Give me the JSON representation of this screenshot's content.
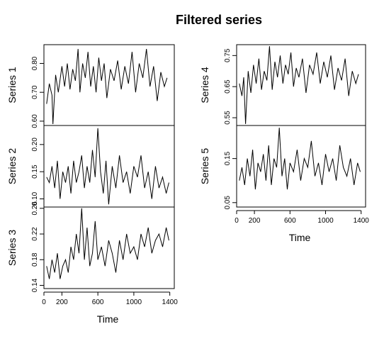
{
  "chart_data": {
    "type": "line",
    "title": "Filtered series",
    "xlabel": "Time",
    "x_domain": [
      0,
      1450
    ],
    "x_ticks": [
      0,
      200,
      600,
      1000,
      1400
    ],
    "x_tick_labels": [
      "0",
      "200",
      "600",
      "1000",
      "1400"
    ],
    "columns": [
      {
        "xlabel": "Time",
        "panels": [
          {
            "name": "Series 1",
            "ylim": [
              0.585,
              0.865
            ],
            "yticks": [
              0.6,
              0.7,
              0.8
            ],
            "ytick_labels": [
              "0.60",
              "0.70",
              "0.80"
            ],
            "x": [
              30,
              60,
              90,
              100,
              130,
              160,
              200,
              230,
              260,
              290,
              320,
              350,
              380,
              400,
              430,
              460,
              490,
              520,
              550,
              580,
              610,
              640,
              670,
              700,
              740,
              780,
              820,
              860,
              900,
              940,
              980,
              1020,
              1060,
              1100,
              1140,
              1180,
              1220,
              1260,
              1300,
              1340,
              1370
            ],
            "values": [
              0.66,
              0.73,
              0.69,
              0.59,
              0.76,
              0.7,
              0.79,
              0.72,
              0.8,
              0.71,
              0.78,
              0.74,
              0.85,
              0.7,
              0.8,
              0.75,
              0.84,
              0.72,
              0.79,
              0.7,
              0.82,
              0.74,
              0.8,
              0.68,
              0.78,
              0.74,
              0.81,
              0.71,
              0.79,
              0.73,
              0.84,
              0.7,
              0.8,
              0.75,
              0.85,
              0.72,
              0.79,
              0.67,
              0.77,
              0.72,
              0.75
            ]
          },
          {
            "name": "Series 2",
            "ylim": [
              0.085,
              0.235
            ],
            "yticks": [
              0.1,
              0.15,
              0.2
            ],
            "ytick_labels": [
              "0.10",
              "0.15",
              "0.20"
            ],
            "x": [
              30,
              60,
              90,
              120,
              150,
              180,
              210,
              240,
              270,
              300,
              330,
              360,
              390,
              420,
              450,
              480,
              510,
              540,
              570,
              600,
              630,
              660,
              690,
              720,
              760,
              800,
              840,
              880,
              920,
              960,
              1000,
              1040,
              1080,
              1120,
              1160,
              1200,
              1240,
              1280,
              1320,
              1360,
              1390
            ],
            "values": [
              0.14,
              0.13,
              0.16,
              0.12,
              0.17,
              0.1,
              0.15,
              0.13,
              0.16,
              0.11,
              0.17,
              0.13,
              0.15,
              0.18,
              0.12,
              0.16,
              0.13,
              0.19,
              0.14,
              0.23,
              0.15,
              0.11,
              0.17,
              0.09,
              0.16,
              0.12,
              0.18,
              0.13,
              0.15,
              0.11,
              0.16,
              0.14,
              0.18,
              0.12,
              0.15,
              0.1,
              0.16,
              0.12,
              0.14,
              0.11,
              0.13
            ]
          },
          {
            "name": "Series 3",
            "ylim": [
              0.135,
              0.262
            ],
            "yticks": [
              0.14,
              0.18,
              0.22,
              0.26
            ],
            "ytick_labels": [
              "0.14",
              "0.18",
              "0.22",
              "0.26"
            ],
            "x": [
              30,
              60,
              90,
              120,
              150,
              180,
              210,
              240,
              270,
              300,
              330,
              360,
              390,
              420,
              450,
              480,
              510,
              540,
              570,
              600,
              640,
              680,
              720,
              760,
              800,
              840,
              880,
              920,
              960,
              1000,
              1040,
              1080,
              1120,
              1160,
              1200,
              1240,
              1280,
              1320,
              1360,
              1390
            ],
            "values": [
              0.17,
              0.15,
              0.18,
              0.16,
              0.19,
              0.15,
              0.17,
              0.18,
              0.16,
              0.2,
              0.18,
              0.22,
              0.19,
              0.26,
              0.18,
              0.23,
              0.17,
              0.19,
              0.24,
              0.18,
              0.2,
              0.17,
              0.21,
              0.19,
              0.16,
              0.21,
              0.18,
              0.22,
              0.19,
              0.2,
              0.18,
              0.22,
              0.2,
              0.23,
              0.19,
              0.21,
              0.22,
              0.2,
              0.23,
              0.21
            ]
          }
        ]
      },
      {
        "xlabel": "Time",
        "panels": [
          {
            "name": "Series 4",
            "ylim": [
              0.525,
              0.785
            ],
            "yticks": [
              0.55,
              0.65,
              0.75
            ],
            "ytick_labels": [
              "0.55",
              "0.65",
              "0.75"
            ],
            "x": [
              30,
              60,
              80,
              100,
              130,
              160,
              190,
              220,
              250,
              280,
              310,
              340,
              370,
              400,
              430,
              460,
              490,
              520,
              550,
              580,
              610,
              640,
              670,
              700,
              740,
              780,
              820,
              860,
              900,
              940,
              980,
              1020,
              1060,
              1100,
              1140,
              1180,
              1220,
              1260,
              1300,
              1340,
              1370
            ],
            "values": [
              0.66,
              0.62,
              0.68,
              0.53,
              0.7,
              0.63,
              0.72,
              0.66,
              0.74,
              0.64,
              0.7,
              0.67,
              0.78,
              0.64,
              0.73,
              0.68,
              0.75,
              0.66,
              0.72,
              0.69,
              0.76,
              0.65,
              0.71,
              0.68,
              0.74,
              0.63,
              0.72,
              0.69,
              0.76,
              0.66,
              0.73,
              0.68,
              0.75,
              0.64,
              0.71,
              0.67,
              0.74,
              0.62,
              0.7,
              0.66,
              0.69
            ]
          },
          {
            "name": "Series 5",
            "ylim": [
              0.04,
              0.225
            ],
            "yticks": [
              0.05,
              0.15
            ],
            "ytick_labels": [
              "0.05",
              "0.15"
            ],
            "x": [
              30,
              60,
              90,
              120,
              150,
              180,
              210,
              240,
              270,
              300,
              330,
              360,
              390,
              420,
              450,
              480,
              510,
              540,
              570,
              600,
              640,
              680,
              720,
              760,
              800,
              840,
              880,
              920,
              960,
              1000,
              1040,
              1080,
              1120,
              1160,
              1200,
              1240,
              1280,
              1320,
              1360,
              1390
            ],
            "values": [
              0.1,
              0.13,
              0.09,
              0.15,
              0.11,
              0.17,
              0.08,
              0.14,
              0.12,
              0.16,
              0.1,
              0.18,
              0.09,
              0.15,
              0.13,
              0.22,
              0.11,
              0.15,
              0.08,
              0.14,
              0.12,
              0.17,
              0.1,
              0.15,
              0.13,
              0.19,
              0.11,
              0.14,
              0.09,
              0.16,
              0.12,
              0.15,
              0.1,
              0.18,
              0.13,
              0.11,
              0.15,
              0.09,
              0.14,
              0.12
            ]
          }
        ]
      }
    ]
  }
}
